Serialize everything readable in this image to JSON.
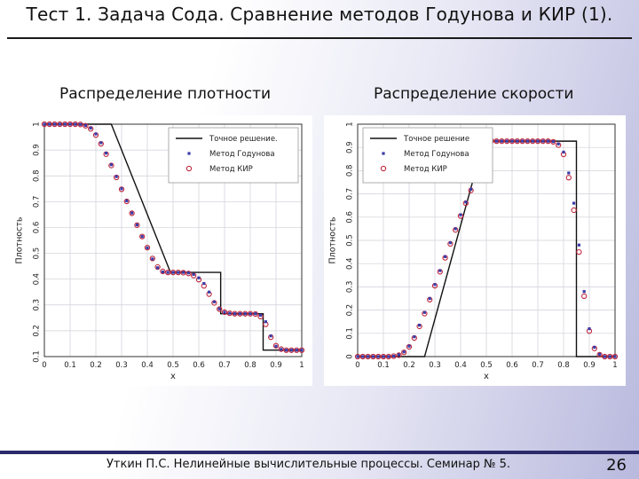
{
  "slide": {
    "title": "Тест 1. Задача Сода. Сравнение методов Годунова и КИР (1).",
    "footer": "Уткин П.С. Нелинейные вычислительные процессы. Семинар № 5.",
    "page_number": "26"
  },
  "panels": {
    "left_title": "Распределение плотности",
    "right_title": "Распределение скорости"
  },
  "colors": {
    "exact": "#111111",
    "godunov": "#3c3ca8",
    "cir": "#c0283c",
    "grid": "#cfcfd8"
  },
  "chart_data": [
    {
      "type": "scatter",
      "title": "Распределение плотности",
      "xlabel": "x",
      "ylabel": "Плотность",
      "xlim": [
        0,
        1
      ],
      "ylim": [
        0.1,
        1
      ],
      "xticks": [
        "0",
        "0.1",
        "0.2",
        "0.3",
        "0.4",
        "0.5",
        "0.6",
        "0.7",
        "0.8",
        "0.9",
        "1"
      ],
      "yticks": [
        "0.1",
        "0.2",
        "0.3",
        "0.4",
        "0.5",
        "0.6",
        "0.7",
        "0.8",
        "0.9",
        "1"
      ],
      "grid": true,
      "legend_position": "top-right",
      "legend": [
        "Точное решение.",
        "Метод Годунова",
        "Метод КИР"
      ],
      "series": [
        {
          "name": "Точное решение.",
          "style": "line",
          "x": [
            0,
            0.26,
            0.49,
            0.49,
            0.685,
            0.685,
            0.85,
            0.85,
            1
          ],
          "y": [
            1,
            1,
            0.426,
            0.426,
            0.426,
            0.266,
            0.266,
            0.125,
            0.125
          ]
        },
        {
          "name": "Метод Годунова",
          "style": "square-markers",
          "x": [
            0.0,
            0.02,
            0.04,
            0.06,
            0.08,
            0.1,
            0.12,
            0.14,
            0.16,
            0.18,
            0.2,
            0.22,
            0.24,
            0.26,
            0.28,
            0.3,
            0.32,
            0.34,
            0.36,
            0.38,
            0.4,
            0.42,
            0.44,
            0.46,
            0.48,
            0.5,
            0.52,
            0.54,
            0.56,
            0.58,
            0.6,
            0.62,
            0.64,
            0.66,
            0.68,
            0.7,
            0.72,
            0.74,
            0.76,
            0.78,
            0.8,
            0.82,
            0.84,
            0.86,
            0.88,
            0.9,
            0.92,
            0.94,
            0.96,
            0.98,
            1.0
          ],
          "y": [
            1.0,
            1.0,
            1.0,
            1.0,
            1.0,
            1.0,
            1.0,
            0.999,
            0.995,
            0.985,
            0.962,
            0.928,
            0.888,
            0.843,
            0.797,
            0.75,
            0.703,
            0.656,
            0.61,
            0.565,
            0.521,
            0.478,
            0.444,
            0.428,
            0.426,
            0.426,
            0.426,
            0.426,
            0.424,
            0.418,
            0.405,
            0.383,
            0.35,
            0.312,
            0.285,
            0.272,
            0.268,
            0.266,
            0.266,
            0.266,
            0.266,
            0.266,
            0.26,
            0.235,
            0.18,
            0.14,
            0.128,
            0.125,
            0.125,
            0.125,
            0.125
          ]
        },
        {
          "name": "Метод КИР",
          "style": "circle-markers",
          "x": [
            0.0,
            0.02,
            0.04,
            0.06,
            0.08,
            0.1,
            0.12,
            0.14,
            0.16,
            0.18,
            0.2,
            0.22,
            0.24,
            0.26,
            0.28,
            0.3,
            0.32,
            0.34,
            0.36,
            0.38,
            0.4,
            0.42,
            0.44,
            0.46,
            0.48,
            0.5,
            0.52,
            0.54,
            0.56,
            0.58,
            0.6,
            0.62,
            0.64,
            0.66,
            0.68,
            0.7,
            0.72,
            0.74,
            0.76,
            0.78,
            0.8,
            0.82,
            0.84,
            0.86,
            0.88,
            0.9,
            0.92,
            0.94,
            0.96,
            0.98,
            1.0
          ],
          "y": [
            1.0,
            1.0,
            1.0,
            1.0,
            1.0,
            1.0,
            1.0,
            0.999,
            0.994,
            0.982,
            0.958,
            0.924,
            0.884,
            0.84,
            0.794,
            0.748,
            0.701,
            0.655,
            0.609,
            0.565,
            0.522,
            0.48,
            0.447,
            0.43,
            0.426,
            0.426,
            0.426,
            0.425,
            0.422,
            0.414,
            0.398,
            0.374,
            0.342,
            0.308,
            0.284,
            0.272,
            0.268,
            0.266,
            0.266,
            0.266,
            0.266,
            0.265,
            0.255,
            0.225,
            0.175,
            0.142,
            0.129,
            0.125,
            0.125,
            0.125,
            0.125
          ]
        }
      ]
    },
    {
      "type": "scatter",
      "title": "Распределение скорости",
      "xlabel": "x",
      "ylabel": "Плотность",
      "xlim": [
        0,
        1
      ],
      "ylim": [
        0,
        1
      ],
      "xticks": [
        "0",
        "0.1",
        "0.2",
        "0.3",
        "0.4",
        "0.5",
        "0.6",
        "0.7",
        "0.8",
        "0.9",
        "1"
      ],
      "yticks": [
        "0",
        "0.1",
        "0.2",
        "0.3",
        "0.4",
        "0.5",
        "0.6",
        "0.7",
        "0.8",
        "0.9",
        "1"
      ],
      "grid": true,
      "legend_position": "top-left",
      "legend": [
        "Точное решение",
        "Метод Годунова",
        "Метод КИР"
      ],
      "series": [
        {
          "name": "Точное решение",
          "style": "line",
          "x": [
            0,
            0.26,
            0.49,
            0.85,
            0.85,
            1
          ],
          "y": [
            0,
            0,
            0.927,
            0.927,
            0,
            0
          ]
        },
        {
          "name": "Метод Годунова",
          "style": "square-markers",
          "x": [
            0.0,
            0.02,
            0.04,
            0.06,
            0.08,
            0.1,
            0.12,
            0.14,
            0.16,
            0.18,
            0.2,
            0.22,
            0.24,
            0.26,
            0.28,
            0.3,
            0.32,
            0.34,
            0.36,
            0.38,
            0.4,
            0.42,
            0.44,
            0.46,
            0.48,
            0.5,
            0.52,
            0.54,
            0.56,
            0.58,
            0.6,
            0.62,
            0.64,
            0.66,
            0.68,
            0.7,
            0.72,
            0.74,
            0.76,
            0.78,
            0.8,
            0.82,
            0.84,
            0.86,
            0.88,
            0.9,
            0.92,
            0.94,
            0.96,
            0.98,
            1.0
          ],
          "y": [
            0,
            0,
            0,
            0,
            0,
            0,
            0,
            0.002,
            0.008,
            0.02,
            0.045,
            0.085,
            0.135,
            0.19,
            0.25,
            0.31,
            0.37,
            0.43,
            0.49,
            0.55,
            0.61,
            0.665,
            0.72,
            0.78,
            0.845,
            0.905,
            0.93,
            0.927,
            0.927,
            0.927,
            0.927,
            0.927,
            0.927,
            0.927,
            0.927,
            0.927,
            0.927,
            0.927,
            0.925,
            0.915,
            0.88,
            0.79,
            0.66,
            0.48,
            0.28,
            0.12,
            0.04,
            0.01,
            0,
            0,
            0
          ]
        },
        {
          "name": "Метод КИР",
          "style": "circle-markers",
          "x": [
            0.0,
            0.02,
            0.04,
            0.06,
            0.08,
            0.1,
            0.12,
            0.14,
            0.16,
            0.18,
            0.2,
            0.22,
            0.24,
            0.26,
            0.28,
            0.3,
            0.32,
            0.34,
            0.36,
            0.38,
            0.4,
            0.42,
            0.44,
            0.46,
            0.48,
            0.5,
            0.52,
            0.54,
            0.56,
            0.58,
            0.6,
            0.62,
            0.64,
            0.66,
            0.68,
            0.7,
            0.72,
            0.74,
            0.76,
            0.78,
            0.8,
            0.82,
            0.84,
            0.86,
            0.88,
            0.9,
            0.92,
            0.94,
            0.96,
            0.98,
            1.0
          ],
          "y": [
            0,
            0,
            0,
            0,
            0,
            0,
            0,
            0.002,
            0.006,
            0.018,
            0.042,
            0.08,
            0.13,
            0.185,
            0.245,
            0.305,
            0.365,
            0.425,
            0.485,
            0.545,
            0.605,
            0.66,
            0.715,
            0.775,
            0.84,
            0.9,
            0.928,
            0.927,
            0.927,
            0.927,
            0.927,
            0.927,
            0.927,
            0.927,
            0.927,
            0.927,
            0.927,
            0.927,
            0.924,
            0.91,
            0.87,
            0.77,
            0.63,
            0.45,
            0.26,
            0.11,
            0.035,
            0.008,
            0,
            0,
            0
          ]
        }
      ]
    }
  ]
}
